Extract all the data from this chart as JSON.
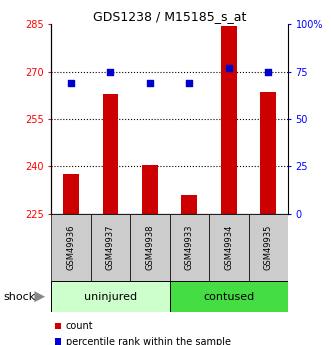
{
  "title": "GDS1238 / M15185_s_at",
  "samples": [
    "GSM49936",
    "GSM49937",
    "GSM49938",
    "GSM49933",
    "GSM49934",
    "GSM49935"
  ],
  "group_colors": [
    "#ccffcc",
    "#44cc44"
  ],
  "bar_color": "#cc0000",
  "dot_color": "#0000cc",
  "count_values": [
    237.5,
    263.0,
    240.5,
    231.0,
    284.5,
    263.5
  ],
  "percentile_values": [
    69,
    75,
    69,
    69,
    77,
    75
  ],
  "ylim_left": [
    225,
    285
  ],
  "ylim_right": [
    0,
    100
  ],
  "yticks_left": [
    225,
    240,
    255,
    270,
    285
  ],
  "yticks_right": [
    0,
    25,
    50,
    75,
    100
  ],
  "ytick_labels_right": [
    "0",
    "25",
    "50",
    "75",
    "100%"
  ],
  "grid_values": [
    240,
    255,
    270
  ],
  "shock_label": "shock",
  "legend_count": "count",
  "legend_percentile": "percentile rank within the sample",
  "bar_base": 225,
  "sample_bg": "#cccccc",
  "uninjured_color": "#ccffcc",
  "contused_color": "#44dd44"
}
